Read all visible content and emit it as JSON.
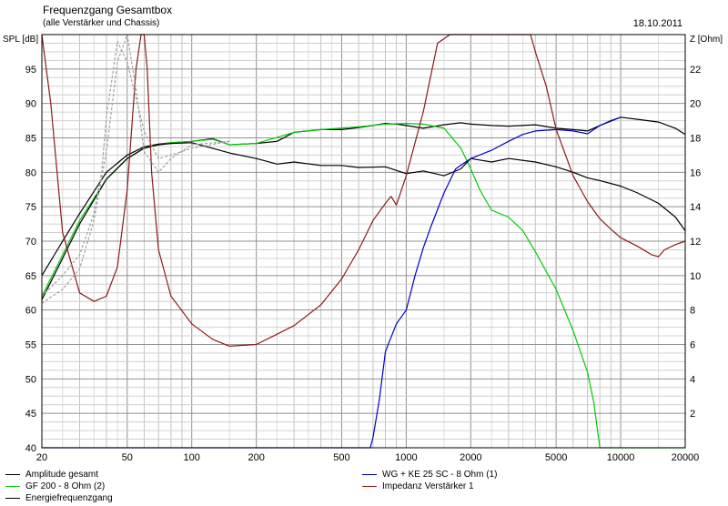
{
  "header": {
    "title": "Frequenzgang Gesamtbox",
    "subtitle": "(alle Verstärker und Chassis)",
    "date": "18.10.2011"
  },
  "chart_data": {
    "type": "line",
    "title": "Frequenzgang Gesamtbox",
    "subtitle": "(alle Verstärker und Chassis)",
    "xlabel": "",
    "ylabel": "SPL [dB]",
    "y2label": "Z [Ohm]",
    "xscale": "log",
    "xlim": [
      20,
      20000
    ],
    "ylim": [
      40,
      100
    ],
    "y2lim": [
      0,
      24
    ],
    "grid": true,
    "x_ticks": [
      20,
      50,
      100,
      200,
      500,
      1000,
      2000,
      5000,
      10000,
      20000
    ],
    "x_tick_labels": [
      "20",
      "50",
      "100",
      "200",
      "500",
      "1000",
      "2000",
      "5000",
      "10000",
      "20000"
    ],
    "y_ticks": [
      40,
      45,
      50,
      55,
      60,
      65,
      70,
      75,
      80,
      85,
      90,
      95
    ],
    "y2_ticks": [
      2,
      4,
      6,
      8,
      10,
      12,
      14,
      16,
      18,
      20,
      22
    ],
    "series": [
      {
        "name": "Amplitude gesamt",
        "color": "#000000",
        "axis": "left",
        "x": [
          20,
          25,
          30,
          40,
          50,
          60,
          70,
          80,
          100,
          125,
          150,
          200,
          250,
          300,
          400,
          500,
          600,
          700,
          800,
          900,
          1000,
          1200,
          1500,
          1800,
          2000,
          2500,
          3000,
          4000,
          5000,
          6000,
          7000,
          8000,
          9000,
          10000,
          12000,
          15000,
          18000,
          20000
        ],
        "y": [
          65,
          70,
          74,
          80,
          82.5,
          83.7,
          84.1,
          84.3,
          84.5,
          84.9,
          84.0,
          84.2,
          84.5,
          85.8,
          86.2,
          86.2,
          86.5,
          86.8,
          87.1,
          87.0,
          86.8,
          86.4,
          86.9,
          87.2,
          87.0,
          86.8,
          86.7,
          86.9,
          86.4,
          86.2,
          86.0,
          86.8,
          87.5,
          88.0,
          87.7,
          87.3,
          86.4,
          85.5
        ]
      },
      {
        "name": "GF 200 - 8 Ohm (2)",
        "color": "#00cc00",
        "axis": "left",
        "x": [
          20,
          25,
          30,
          40,
          50,
          60,
          70,
          80,
          100,
          125,
          150,
          200,
          300,
          400,
          600,
          800,
          1000,
          1200,
          1500,
          1800,
          2000,
          2200,
          2500,
          3000,
          3500,
          4000,
          5000,
          6000,
          7000,
          7500,
          8000,
          10000,
          20000
        ],
        "y": [
          62,
          68,
          73,
          79,
          82.0,
          83.5,
          84.0,
          84.3,
          84.5,
          84.8,
          84.0,
          84.2,
          85.8,
          86.2,
          86.6,
          87.0,
          87.1,
          87.0,
          86.4,
          83.5,
          80.5,
          77.5,
          74.5,
          73.5,
          71.5,
          68.5,
          63.0,
          57.0,
          51.0,
          46.5,
          40.0,
          40.0,
          40.0
        ]
      },
      {
        "name": "Energiefrequenzgang",
        "color": "#000000",
        "axis": "left",
        "x": [
          20,
          25,
          30,
          40,
          50,
          60,
          70,
          80,
          100,
          125,
          150,
          200,
          250,
          300,
          400,
          500,
          600,
          800,
          1000,
          1200,
          1500,
          1800,
          2000,
          2500,
          3000,
          4000,
          5000,
          6000,
          7000,
          8000,
          10000,
          12000,
          15000,
          18000,
          20000
        ],
        "y": [
          61.5,
          67.5,
          72.5,
          79.0,
          82.0,
          83.5,
          84.0,
          84.2,
          84.3,
          83.5,
          82.8,
          82.0,
          81.2,
          81.5,
          81.0,
          81.0,
          80.7,
          80.8,
          79.8,
          80.2,
          79.5,
          80.5,
          82.0,
          81.5,
          82.0,
          81.5,
          80.8,
          80.0,
          79.2,
          78.8,
          78.0,
          77.0,
          75.5,
          73.5,
          71.5
        ]
      },
      {
        "name": "WG + KE 25 SC - 8 Ohm (1)",
        "color": "#0000cc",
        "axis": "left",
        "x": [
          20,
          500,
          680,
          700,
          750,
          800,
          900,
          1000,
          1100,
          1200,
          1300,
          1500,
          1700,
          2000,
          2500,
          3000,
          3500,
          4000,
          5000,
          6000,
          7000,
          8000,
          10000
        ],
        "y": [
          40,
          40,
          40,
          41.5,
          47.0,
          54.0,
          58.0,
          60.0,
          65.0,
          69.0,
          72.0,
          77.0,
          80.5,
          82.0,
          83.2,
          84.5,
          85.5,
          86.0,
          86.2,
          86.0,
          85.6,
          86.8,
          88.0
        ]
      },
      {
        "name": "Impedanz Verstärker 1",
        "color": "#8b1a1a",
        "axis": "right",
        "x": [
          20,
          22,
          25,
          30,
          35,
          40,
          45,
          50,
          55,
          58,
          60,
          62,
          65,
          70,
          80,
          100,
          125,
          150,
          200,
          250,
          300,
          400,
          500,
          600,
          700,
          800,
          850,
          900,
          1000,
          1200,
          1400,
          1600,
          2000,
          2500,
          3000,
          3500,
          3800,
          4000,
          4500,
          5000,
          6000,
          7000,
          8000,
          9000,
          10000,
          12000,
          14000,
          15000,
          16000,
          18000,
          20000
        ],
        "y": [
          24,
          20,
          12.5,
          9,
          8.5,
          8.8,
          10.5,
          15,
          22,
          24,
          24,
          22,
          16,
          11.5,
          8.8,
          7.2,
          6.3,
          5.9,
          6.0,
          6.6,
          7.1,
          8.3,
          9.8,
          11.5,
          13.2,
          14.2,
          14.6,
          14.1,
          15.8,
          19.5,
          23.5,
          24,
          24,
          24,
          24,
          24,
          24,
          23,
          21,
          18.5,
          15.8,
          14.3,
          13.3,
          12.7,
          12.2,
          11.7,
          11.2,
          11.1,
          11.5,
          11.8,
          12
        ]
      },
      {
        "name": "",
        "color": "#a0a0a0",
        "dashed": true,
        "axis": "left",
        "x": [
          20,
          25,
          30,
          35,
          40,
          45,
          50,
          55,
          60,
          70,
          80,
          100,
          150
        ],
        "y": [
          61,
          63,
          66,
          73,
          83,
          96,
          100,
          92,
          83,
          80,
          82,
          84,
          84.5
        ]
      },
      {
        "name": "",
        "color": "#a0a0a0",
        "dashed": true,
        "axis": "left",
        "x": [
          20,
          25,
          30,
          35,
          38,
          40,
          45,
          50,
          60,
          70,
          80,
          100,
          150
        ],
        "y": [
          62,
          65,
          68,
          74,
          80,
          88,
          99,
          96,
          86,
          82,
          82.5,
          83.5,
          84.5
        ]
      }
    ]
  },
  "legend": {
    "items": [
      {
        "label": "Amplitude gesamt",
        "color": "#000000"
      },
      {
        "label": "GF 200 - 8 Ohm (2)",
        "color": "#00cc00"
      },
      {
        "label": "Energiefrequenzgang",
        "color": "#000000"
      },
      {
        "label": "WG + KE 25 SC - 8 Ohm (1)",
        "color": "#0000cc"
      },
      {
        "label": "Impedanz Verstärker 1",
        "color": "#8b1a1a"
      }
    ]
  }
}
